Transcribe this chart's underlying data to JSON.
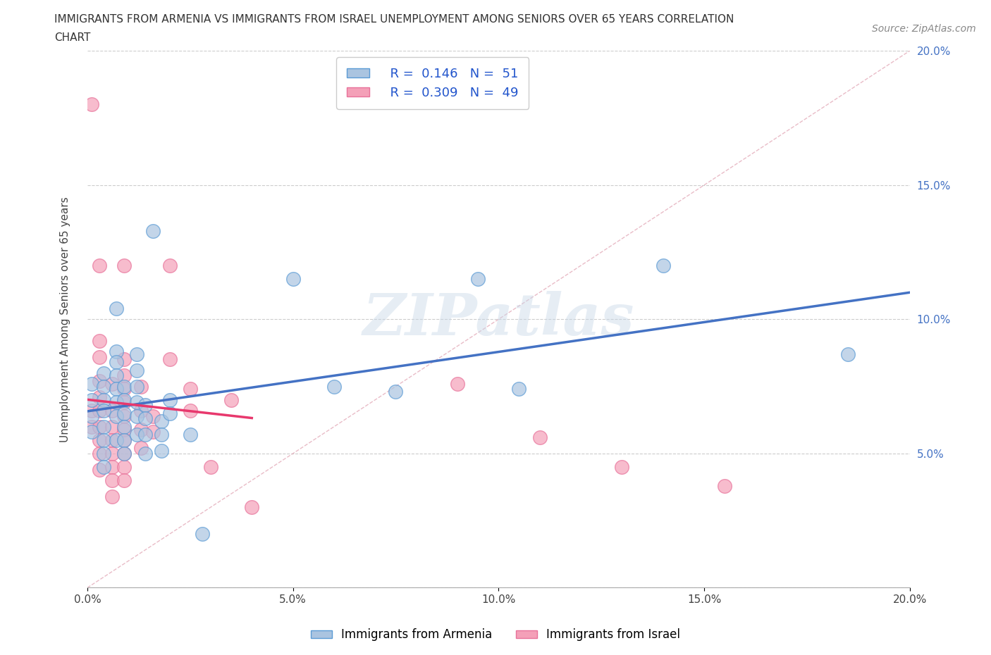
{
  "title_line1": "IMMIGRANTS FROM ARMENIA VS IMMIGRANTS FROM ISRAEL UNEMPLOYMENT AMONG SENIORS OVER 65 YEARS CORRELATION",
  "title_line2": "CHART",
  "source_text": "Source: ZipAtlas.com",
  "ylabel": "Unemployment Among Seniors over 65 years",
  "xlim": [
    0.0,
    0.2
  ],
  "ylim": [
    0.0,
    0.2
  ],
  "xticks": [
    0.0,
    0.05,
    0.1,
    0.15,
    0.2
  ],
  "yticks": [
    0.0,
    0.05,
    0.1,
    0.15,
    0.2
  ],
  "xticklabels": [
    "0.0%",
    "5.0%",
    "10.0%",
    "15.0%",
    "20.0%"
  ],
  "yticklabels_right": [
    "",
    "5.0%",
    "10.0%",
    "15.0%",
    "20.0%"
  ],
  "armenia_color": "#aac4e0",
  "israel_color": "#f4a0b8",
  "armenia_edge": "#5b9bd5",
  "israel_edge": "#e8729a",
  "armenia_R": 0.146,
  "armenia_N": 51,
  "israel_R": 0.309,
  "israel_N": 49,
  "legend_label_armenia": "Immigrants from Armenia",
  "legend_label_israel": "Immigrants from Israel",
  "watermark_text": "ZIPatlas",
  "trendline_armenia_color": "#4472c4",
  "trendline_israel_color": "#e8386d",
  "ref_line_color": "#cccccc",
  "background_color": "#ffffff",
  "grid_color": "#cccccc",
  "armenia_scatter": [
    [
      0.001,
      0.076
    ],
    [
      0.001,
      0.07
    ],
    [
      0.001,
      0.064
    ],
    [
      0.001,
      0.058
    ],
    [
      0.004,
      0.08
    ],
    [
      0.004,
      0.075
    ],
    [
      0.004,
      0.07
    ],
    [
      0.004,
      0.066
    ],
    [
      0.004,
      0.06
    ],
    [
      0.004,
      0.055
    ],
    [
      0.004,
      0.05
    ],
    [
      0.004,
      0.045
    ],
    [
      0.007,
      0.104
    ],
    [
      0.007,
      0.088
    ],
    [
      0.007,
      0.084
    ],
    [
      0.007,
      0.079
    ],
    [
      0.007,
      0.074
    ],
    [
      0.007,
      0.069
    ],
    [
      0.007,
      0.064
    ],
    [
      0.007,
      0.055
    ],
    [
      0.009,
      0.075
    ],
    [
      0.009,
      0.07
    ],
    [
      0.009,
      0.065
    ],
    [
      0.009,
      0.06
    ],
    [
      0.009,
      0.055
    ],
    [
      0.009,
      0.05
    ],
    [
      0.012,
      0.087
    ],
    [
      0.012,
      0.081
    ],
    [
      0.012,
      0.075
    ],
    [
      0.012,
      0.069
    ],
    [
      0.012,
      0.064
    ],
    [
      0.012,
      0.057
    ],
    [
      0.014,
      0.068
    ],
    [
      0.014,
      0.063
    ],
    [
      0.014,
      0.057
    ],
    [
      0.014,
      0.05
    ],
    [
      0.016,
      0.133
    ],
    [
      0.018,
      0.062
    ],
    [
      0.018,
      0.057
    ],
    [
      0.018,
      0.051
    ],
    [
      0.02,
      0.07
    ],
    [
      0.02,
      0.065
    ],
    [
      0.025,
      0.057
    ],
    [
      0.028,
      0.02
    ],
    [
      0.05,
      0.115
    ],
    [
      0.06,
      0.075
    ],
    [
      0.075,
      0.073
    ],
    [
      0.095,
      0.115
    ],
    [
      0.105,
      0.074
    ],
    [
      0.14,
      0.12
    ],
    [
      0.185,
      0.087
    ]
  ],
  "israel_scatter": [
    [
      0.001,
      0.18
    ],
    [
      0.001,
      0.066
    ],
    [
      0.001,
      0.06
    ],
    [
      0.003,
      0.12
    ],
    [
      0.003,
      0.092
    ],
    [
      0.003,
      0.086
    ],
    [
      0.003,
      0.077
    ],
    [
      0.003,
      0.071
    ],
    [
      0.003,
      0.066
    ],
    [
      0.003,
      0.06
    ],
    [
      0.003,
      0.055
    ],
    [
      0.003,
      0.05
    ],
    [
      0.003,
      0.044
    ],
    [
      0.006,
      0.076
    ],
    [
      0.006,
      0.066
    ],
    [
      0.006,
      0.06
    ],
    [
      0.006,
      0.055
    ],
    [
      0.006,
      0.05
    ],
    [
      0.006,
      0.045
    ],
    [
      0.006,
      0.04
    ],
    [
      0.006,
      0.034
    ],
    [
      0.009,
      0.12
    ],
    [
      0.009,
      0.085
    ],
    [
      0.009,
      0.079
    ],
    [
      0.009,
      0.074
    ],
    [
      0.009,
      0.069
    ],
    [
      0.009,
      0.064
    ],
    [
      0.009,
      0.059
    ],
    [
      0.009,
      0.055
    ],
    [
      0.009,
      0.05
    ],
    [
      0.009,
      0.045
    ],
    [
      0.009,
      0.04
    ],
    [
      0.013,
      0.075
    ],
    [
      0.013,
      0.066
    ],
    [
      0.013,
      0.059
    ],
    [
      0.013,
      0.052
    ],
    [
      0.016,
      0.064
    ],
    [
      0.016,
      0.058
    ],
    [
      0.02,
      0.12
    ],
    [
      0.02,
      0.085
    ],
    [
      0.025,
      0.074
    ],
    [
      0.025,
      0.066
    ],
    [
      0.03,
      0.045
    ],
    [
      0.035,
      0.07
    ],
    [
      0.04,
      0.03
    ],
    [
      0.09,
      0.076
    ],
    [
      0.11,
      0.056
    ],
    [
      0.13,
      0.045
    ],
    [
      0.155,
      0.038
    ]
  ]
}
